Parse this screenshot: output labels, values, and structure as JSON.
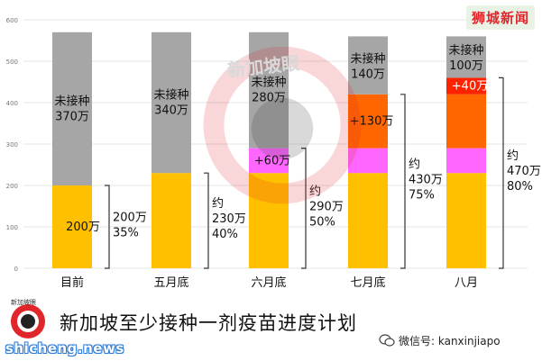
{
  "brand": "狮城新闻",
  "watermark_text": "新加坡眼",
  "title": "新加坡至少接种一剂疫苗进度计划",
  "logo_text": "新加坡眼",
  "site": "shicheng.news",
  "wechat": "微信号: kanxinjiapo",
  "colors": {
    "vaccinated": "#ffc000",
    "remaining": "#a6a6a6",
    "added_june": "#ff66ff",
    "added_july": "#ff6600",
    "added_august": "#ff2200",
    "logo": "#e0262b"
  },
  "chart_data": {
    "type": "bar",
    "stacked": true,
    "ylim": [
      0,
      600
    ],
    "yticks": [
      0,
      100,
      200,
      300,
      400,
      500,
      600
    ],
    "categories": [
      "目前",
      "五月底",
      "六月底",
      "七月底",
      "八月"
    ],
    "series": [
      {
        "key": "vaccinated",
        "values": [
          200,
          230,
          230,
          230,
          230
        ]
      },
      {
        "key": "added_june",
        "values": [
          0,
          0,
          60,
          60,
          60
        ]
      },
      {
        "key": "added_july",
        "values": [
          0,
          0,
          0,
          130,
          130
        ]
      },
      {
        "key": "added_august",
        "values": [
          0,
          0,
          0,
          0,
          40
        ]
      },
      {
        "key": "remaining",
        "values": [
          370,
          340,
          280,
          140,
          100
        ]
      }
    ],
    "segment_labels": [
      {
        "bar": 0,
        "series": "vaccinated",
        "text": "200万"
      },
      {
        "bar": 0,
        "series": "remaining",
        "text": "未接种\n370万"
      },
      {
        "bar": 1,
        "series": "remaining",
        "text": "未接种\n340万"
      },
      {
        "bar": 2,
        "series": "added_june",
        "text": "+60万"
      },
      {
        "bar": 2,
        "series": "remaining",
        "text": "未接种\n280万"
      },
      {
        "bar": 3,
        "series": "added_july",
        "text": "+130万"
      },
      {
        "bar": 3,
        "series": "remaining",
        "text": "未接种\n140万"
      },
      {
        "bar": 4,
        "series": "added_august",
        "text": "+40万"
      },
      {
        "bar": 4,
        "series": "remaining",
        "text": "未接种\n100万"
      }
    ],
    "brackets": [
      {
        "bar": 0,
        "top": 200,
        "text": "200万\n35%"
      },
      {
        "bar": 1,
        "top": 230,
        "text": "约\n230万\n40%"
      },
      {
        "bar": 2,
        "top": 290,
        "text": "约\n290万\n50%"
      },
      {
        "bar": 3,
        "top": 420,
        "text": "约\n430万\n75%"
      },
      {
        "bar": 4,
        "top": 460,
        "text": "约\n470万\n80%"
      }
    ]
  }
}
